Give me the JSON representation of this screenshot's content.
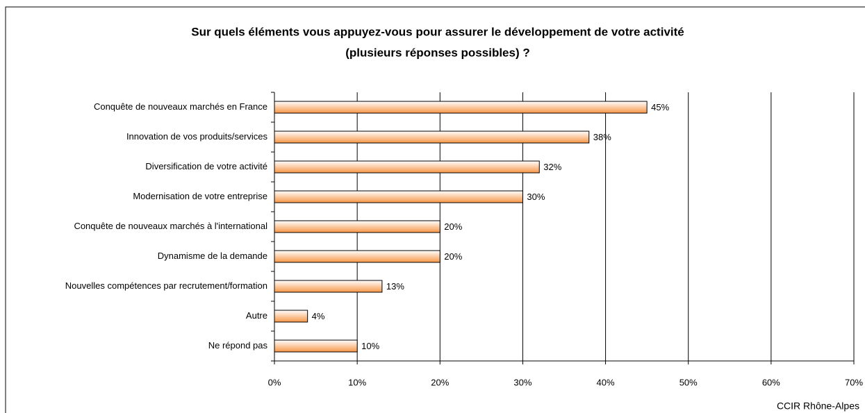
{
  "chart_data": {
    "type": "bar",
    "orientation": "horizontal",
    "title": [
      "Sur quels éléments vous appuyez-vous pour assurer le développement de votre activité",
      "(plusieurs réponses possibles) ?"
    ],
    "categories": [
      "Conquête de nouveaux marchés en France",
      "Innovation de vos produits/services",
      "Diversification de votre activité",
      "Modernisation de votre entreprise",
      "Conquête de nouveaux marchés à l'international",
      "Dynamisme de la demande",
      "Nouvelles compétences par recrutement/formation",
      "Autre",
      "Ne répond pas"
    ],
    "values": [
      45,
      38,
      32,
      30,
      20,
      20,
      13,
      4,
      10
    ],
    "value_labels": [
      "45%",
      "38%",
      "32%",
      "30%",
      "20%",
      "20%",
      "13%",
      "4%",
      "10%"
    ],
    "color": "#f79646",
    "xlim": [
      0,
      70
    ],
    "xticks": [
      {
        "value": 0,
        "label": "0%"
      },
      {
        "value": 10,
        "label": "10%"
      },
      {
        "value": 20,
        "label": "20%"
      },
      {
        "value": 30,
        "label": "30%"
      },
      {
        "value": 40,
        "label": "40%"
      },
      {
        "value": 50,
        "label": "50%"
      },
      {
        "value": 60,
        "label": "60%"
      },
      {
        "value": 70,
        "label": "70%"
      }
    ],
    "grid": true,
    "source": "CCIR Rhône-Alpes"
  }
}
